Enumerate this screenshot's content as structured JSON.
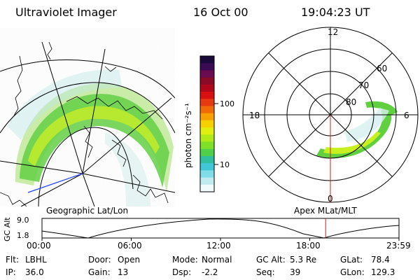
{
  "header": {
    "title": "Ultraviolet Imager",
    "date": "16 Oct 00",
    "time": "19:04:23 UT"
  },
  "colorbar": {
    "unit_label": "photon cm⁻²s⁻¹",
    "tick_labels": [
      "100",
      "10"
    ],
    "colors": [
      "#1a0a3a",
      "#3a0a55",
      "#6a0a50",
      "#8a0a28",
      "#b0081a",
      "#d81010",
      "#e83a10",
      "#f06a08",
      "#f7a000",
      "#f7d000",
      "#e0ee10",
      "#b0e818",
      "#80e028",
      "#50d048",
      "#30c0a0",
      "#40c8d8",
      "#80dce8",
      "#c0ecf0",
      "#f2fbfc"
    ]
  },
  "left_map": {
    "label": "Geographic Lat/Lon"
  },
  "polar_plot": {
    "label": "Apex MLat/MLT",
    "mlt_labels": [
      "12",
      "18",
      "6",
      "0"
    ],
    "mlat_labels": [
      "60",
      "70",
      "80"
    ]
  },
  "strip": {
    "ylabel": "GC Alt",
    "y_ticks": [
      "9.0",
      "1.8"
    ],
    "x_ticks": [
      "00:00",
      "06:00",
      "12:00",
      "18:00",
      "23:59"
    ],
    "current_time_hours": 19.07,
    "marker_color": "#d02020"
  },
  "footer": [
    {
      "label": "Flt:",
      "value": "LBHL"
    },
    {
      "label": "Door:",
      "value": "Open"
    },
    {
      "label": "Mode:",
      "value": "Normal"
    },
    {
      "label": "GC Alt:",
      "value": "5.3 Re"
    },
    {
      "label": "GLat:",
      "value": "78.4"
    },
    {
      "label": "IP:",
      "value": "36.0"
    },
    {
      "label": "Gain:",
      "value": "13"
    },
    {
      "label": "Dsp:",
      "value": "-2.2"
    },
    {
      "label": "Seq:",
      "value": "39"
    },
    {
      "label": "GLon:",
      "value": "129.3"
    }
  ]
}
